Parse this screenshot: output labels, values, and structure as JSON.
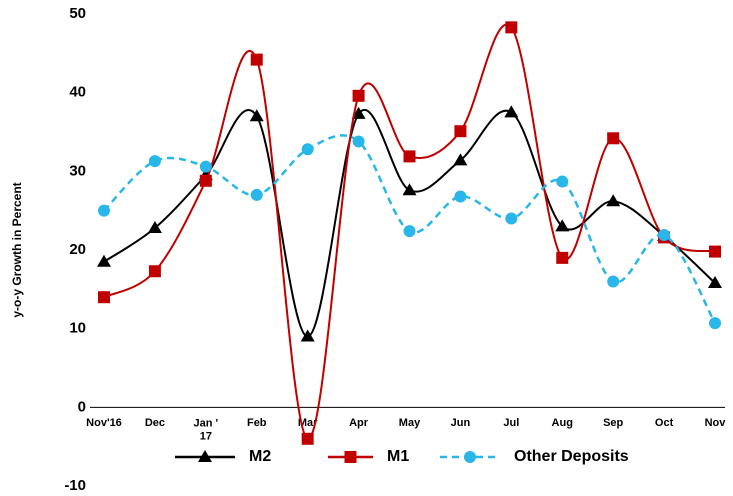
{
  "chart_data": {
    "type": "line",
    "y_label": "y-o-y Growth in Percent",
    "categories": [
      "Nov'16",
      "Dec",
      "Jan ' 17",
      "Feb",
      "Mar",
      "Apr",
      "May",
      "Jun",
      "Jul",
      "Aug",
      "Sep",
      "Oct",
      "Nov"
    ],
    "series": [
      {
        "name": "M2",
        "color": "#000000",
        "marker": "triangle",
        "dash": false,
        "values": [
          18.5,
          22.8,
          29.5,
          37,
          9,
          37.3,
          27.6,
          31.4,
          37.5,
          23,
          26.2,
          21.8,
          15.8
        ]
      },
      {
        "name": "M1",
        "color": "#c00000",
        "marker": "square",
        "dash": false,
        "values": [
          14,
          17.3,
          28.8,
          44.2,
          -4,
          39.6,
          31.9,
          35.1,
          48.3,
          19,
          34.2,
          21.6,
          19.8
        ]
      },
      {
        "name": "Other Deposits",
        "color": "#29b6e8",
        "marker": "circle",
        "dash": true,
        "values": [
          25,
          31.3,
          30.6,
          27,
          32.8,
          33.8,
          22.4,
          26.8,
          24,
          28.7,
          16,
          21.9,
          10.7
        ]
      }
    ],
    "ylim": [
      -10,
      50
    ],
    "yticks": [
      -10,
      0,
      10,
      20,
      30,
      40,
      50
    ],
    "grid": false,
    "legend": "bottom",
    "smooth": true
  }
}
